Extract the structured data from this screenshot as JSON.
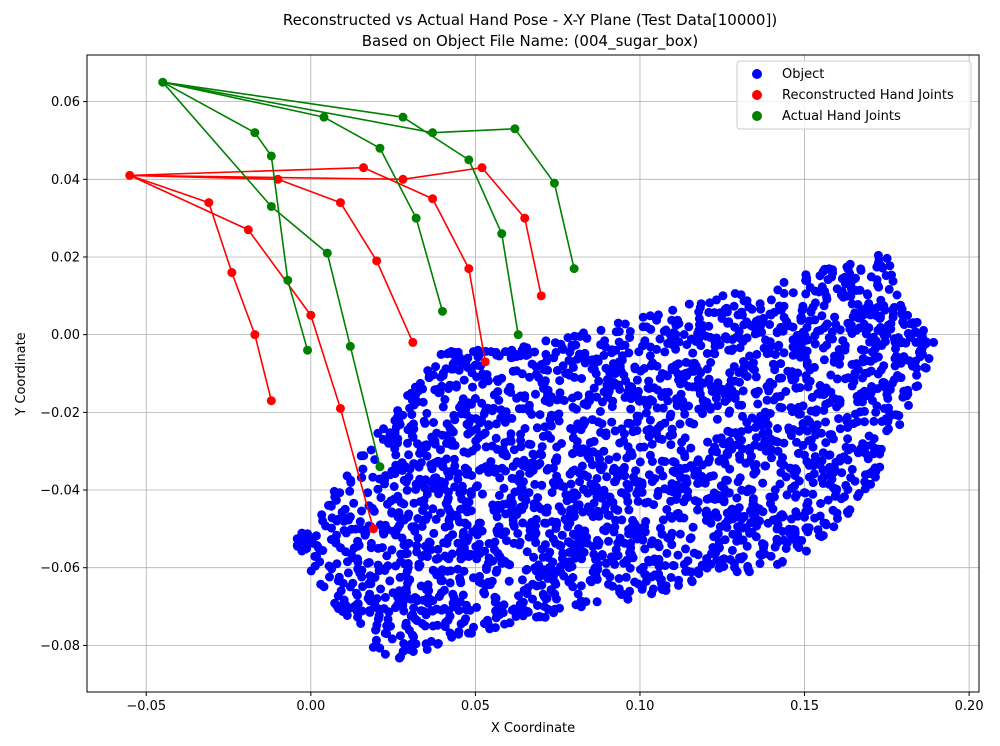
{
  "chart_data": {
    "type": "scatter",
    "title": "Reconstructed vs Actual Hand Pose - X-Y Plane (Test Data[10000])",
    "subtitle": "Based on Object File Name: (004_sugar_box)",
    "xlabel": "X Coordinate",
    "ylabel": "Y Coordinate",
    "xlim": [
      -0.068,
      0.203
    ],
    "ylim": [
      -0.092,
      0.072
    ],
    "xticks": [
      -0.05,
      0.0,
      0.05,
      0.1,
      0.15,
      0.2
    ],
    "xtick_labels": [
      "−0.05",
      "0.00",
      "0.05",
      "0.10",
      "0.15",
      "0.20"
    ],
    "yticks": [
      -0.08,
      -0.06,
      -0.04,
      -0.02,
      0.0,
      0.02,
      0.04,
      0.06
    ],
    "ytick_labels": [
      "−0.08",
      "−0.06",
      "−0.04",
      "−0.02",
      "0.00",
      "0.02",
      "0.04",
      "0.06"
    ],
    "grid": true,
    "legend_position": "top-right",
    "legend": [
      "Object",
      "Reconstructed Hand Joints",
      "Actual Hand Joints"
    ],
    "colors": {
      "object": "#0000ff",
      "reconstructed": "#ff0000",
      "actual": "#008000"
    },
    "object_region": {
      "description_points": "dense cloud of ~3000 points; polygon outline in data units",
      "polygon": [
        [
          0.02,
          -0.084
        ],
        [
          -0.006,
          -0.054
        ],
        [
          0.04,
          -0.004
        ],
        [
          0.06,
          -0.004
        ],
        [
          0.175,
          0.021
        ],
        [
          0.19,
          -0.003
        ],
        [
          0.17,
          -0.04
        ],
        [
          0.15,
          -0.058
        ],
        [
          0.05,
          -0.077
        ],
        [
          0.03,
          -0.083
        ]
      ]
    },
    "reconstructed": {
      "joints": [
        [
          -0.055,
          0.041
        ],
        [
          -0.031,
          0.034
        ],
        [
          -0.024,
          0.016
        ],
        [
          -0.017,
          0.0
        ],
        [
          -0.012,
          -0.017
        ],
        [
          -0.019,
          0.027
        ],
        [
          0.0,
          0.005
        ],
        [
          0.009,
          -0.019
        ],
        [
          0.019,
          -0.05
        ],
        [
          -0.01,
          0.04
        ],
        [
          0.009,
          0.034
        ],
        [
          0.02,
          0.019
        ],
        [
          0.031,
          -0.002
        ],
        [
          0.016,
          0.043
        ],
        [
          0.037,
          0.035
        ],
        [
          0.048,
          0.017
        ],
        [
          0.053,
          -0.007
        ],
        [
          0.028,
          0.04
        ],
        [
          0.052,
          0.043
        ],
        [
          0.065,
          0.03
        ],
        [
          0.07,
          0.01
        ]
      ],
      "bones": [
        [
          0,
          1
        ],
        [
          1,
          2
        ],
        [
          2,
          3
        ],
        [
          3,
          4
        ],
        [
          0,
          5
        ],
        [
          5,
          6
        ],
        [
          6,
          7
        ],
        [
          7,
          8
        ],
        [
          0,
          9
        ],
        [
          9,
          10
        ],
        [
          10,
          11
        ],
        [
          11,
          12
        ],
        [
          0,
          13
        ],
        [
          13,
          14
        ],
        [
          14,
          15
        ],
        [
          15,
          16
        ],
        [
          0,
          17
        ],
        [
          17,
          18
        ],
        [
          18,
          19
        ],
        [
          19,
          20
        ]
      ]
    },
    "actual": {
      "joints": [
        [
          -0.045,
          0.065
        ],
        [
          -0.017,
          0.052
        ],
        [
          -0.012,
          0.046
        ],
        [
          -0.007,
          0.014
        ],
        [
          -0.001,
          -0.004
        ],
        [
          -0.012,
          0.033
        ],
        [
          0.005,
          0.021
        ],
        [
          0.012,
          -0.003
        ],
        [
          0.021,
          -0.034
        ],
        [
          0.004,
          0.056
        ],
        [
          0.021,
          0.048
        ],
        [
          0.032,
          0.03
        ],
        [
          0.04,
          0.006
        ],
        [
          0.028,
          0.056
        ],
        [
          0.048,
          0.045
        ],
        [
          0.058,
          0.026
        ],
        [
          0.063,
          0.0
        ],
        [
          0.037,
          0.052
        ],
        [
          0.062,
          0.053
        ],
        [
          0.074,
          0.039
        ],
        [
          0.08,
          0.017
        ]
      ],
      "bones": [
        [
          0,
          1
        ],
        [
          1,
          2
        ],
        [
          2,
          3
        ],
        [
          3,
          4
        ],
        [
          0,
          5
        ],
        [
          5,
          6
        ],
        [
          6,
          7
        ],
        [
          7,
          8
        ],
        [
          0,
          9
        ],
        [
          9,
          10
        ],
        [
          10,
          11
        ],
        [
          11,
          12
        ],
        [
          0,
          13
        ],
        [
          13,
          14
        ],
        [
          14,
          15
        ],
        [
          15,
          16
        ],
        [
          0,
          17
        ],
        [
          17,
          18
        ],
        [
          18,
          19
        ],
        [
          19,
          20
        ]
      ]
    }
  }
}
